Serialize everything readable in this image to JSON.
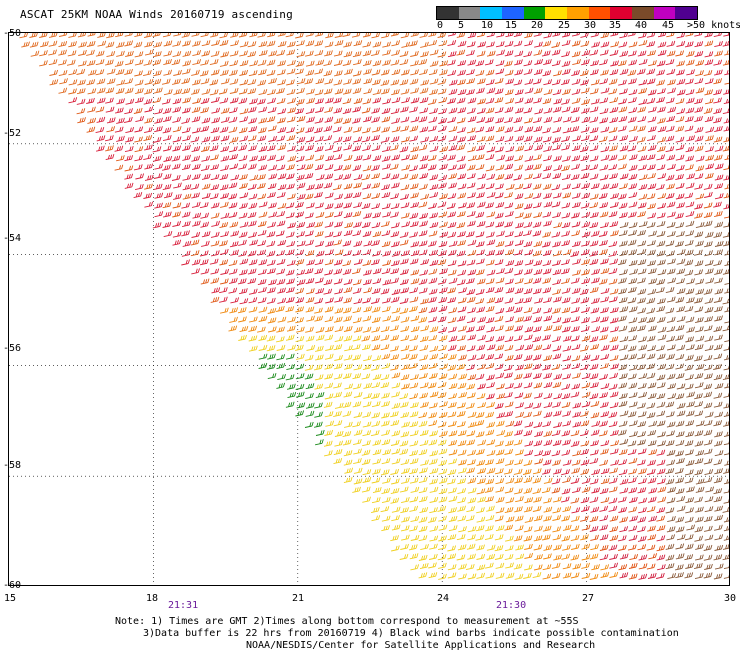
{
  "title": "ASCAT 25KM NOAA Winds 20160719 ascending",
  "legend": {
    "ticks": [
      "0",
      "5",
      "10",
      "15",
      "20",
      "25",
      "30",
      "35",
      "40",
      "45"
    ],
    "last_tick": ">50 knots",
    "colors": [
      "#333333",
      "#888888",
      "#00bfff",
      "#1e64ff",
      "#00a000",
      "#ffe000",
      "#ffa000",
      "#ff5000",
      "#e00030",
      "#7a4a2a",
      "#c000c0",
      "#500090"
    ]
  },
  "map": {
    "lat_labels": [
      "-50",
      "-52",
      "-54",
      "-56",
      "-58",
      "-60"
    ],
    "lon_labels": [
      "15",
      "18",
      "21",
      "24",
      "27",
      "30"
    ],
    "time_labels": [
      "21:31",
      "21:30"
    ],
    "lat_range": [
      -60,
      -50
    ],
    "lon_range": [
      15,
      30
    ],
    "swath_left_edge_lon_at_lat": [
      [
        -50,
        15.0
      ],
      [
        -60,
        23.5
      ]
    ]
  },
  "notes": {
    "line1": "Note: 1) Times are GMT 2)Times along bottom correspond to measurement at ~55S",
    "line2": "3)Data buffer is 22 hrs from 20160719 4) Black wind barbs indicate possible contamination",
    "line3": "NOAA/NESDIS/Center for Satellite Applications and Research"
  }
}
